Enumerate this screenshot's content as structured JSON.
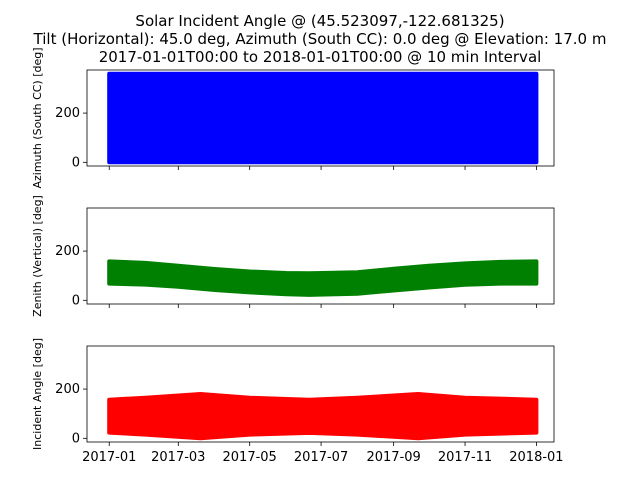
{
  "title": {
    "line1": "Solar Incident Angle @ (45.523097,-122.681325)",
    "line2": "Tilt (Horizontal): 45.0 deg, Azimuth (South CC): 0.0 deg @ Elevation: 17.0 m",
    "line3": "2017-01-01T00:00 to 2018-01-01T00:00 @ 10 min Interval"
  },
  "chart_data": [
    {
      "type": "area",
      "ylabel": "Azimuth (South CC) [deg]",
      "color": "#0000ff",
      "xlim": [
        "2016-12-13",
        "2018-01-16"
      ],
      "ylim": [
        -15,
        375
      ],
      "yticks": [
        0,
        200
      ],
      "band": {
        "x": [
          "2017-01-01",
          "2017-03-01",
          "2017-05-01",
          "2017-07-01",
          "2017-09-01",
          "2017-11-01",
          "2018-01-01"
        ],
        "low": [
          0,
          0,
          0,
          0,
          0,
          0,
          0
        ],
        "high": [
          360,
          360,
          360,
          360,
          360,
          360,
          360
        ]
      }
    },
    {
      "type": "area",
      "ylabel": "Zenith (Vertical) [deg]",
      "color": "#008000",
      "xlim": [
        "2016-12-13",
        "2018-01-16"
      ],
      "ylim": [
        -15,
        375
      ],
      "yticks": [
        0,
        200
      ],
      "band": {
        "x": [
          "2017-01-01",
          "2017-02-01",
          "2017-03-01",
          "2017-04-01",
          "2017-05-01",
          "2017-06-01",
          "2017-06-21",
          "2017-08-01",
          "2017-09-01",
          "2017-10-01",
          "2017-11-01",
          "2017-12-01",
          "2018-01-01"
        ],
        "low": [
          68,
          64,
          55,
          42,
          32,
          25,
          22,
          27,
          40,
          52,
          63,
          68,
          68
        ],
        "high": [
          158,
          152,
          140,
          127,
          117,
          111,
          110,
          114,
          128,
          140,
          150,
          156,
          158
        ]
      }
    },
    {
      "type": "area",
      "ylabel": "Incident Angle [deg]",
      "color": "#ff0000",
      "xlim": [
        "2016-12-13",
        "2018-01-16"
      ],
      "ylim": [
        -15,
        375
      ],
      "yticks": [
        0,
        200
      ],
      "band": {
        "x": [
          "2017-01-01",
          "2017-02-01",
          "2017-03-20",
          "2017-05-01",
          "2017-06-21",
          "2017-08-01",
          "2017-09-22",
          "2017-11-01",
          "2018-01-01"
        ],
        "low": [
          23,
          15,
          0,
          15,
          22,
          15,
          0,
          15,
          23
        ],
        "high": [
          157,
          165,
          180,
          165,
          157,
          165,
          180,
          165,
          157
        ]
      }
    }
  ],
  "xaxis": {
    "tick_dates": [
      "2017-01-01",
      "2017-03-01",
      "2017-05-01",
      "2017-07-01",
      "2017-09-01",
      "2017-11-01",
      "2018-01-01"
    ],
    "tick_labels": [
      "2017-01",
      "2017-03",
      "2017-05",
      "2017-07",
      "2017-09",
      "2017-11",
      "2018-01"
    ]
  }
}
